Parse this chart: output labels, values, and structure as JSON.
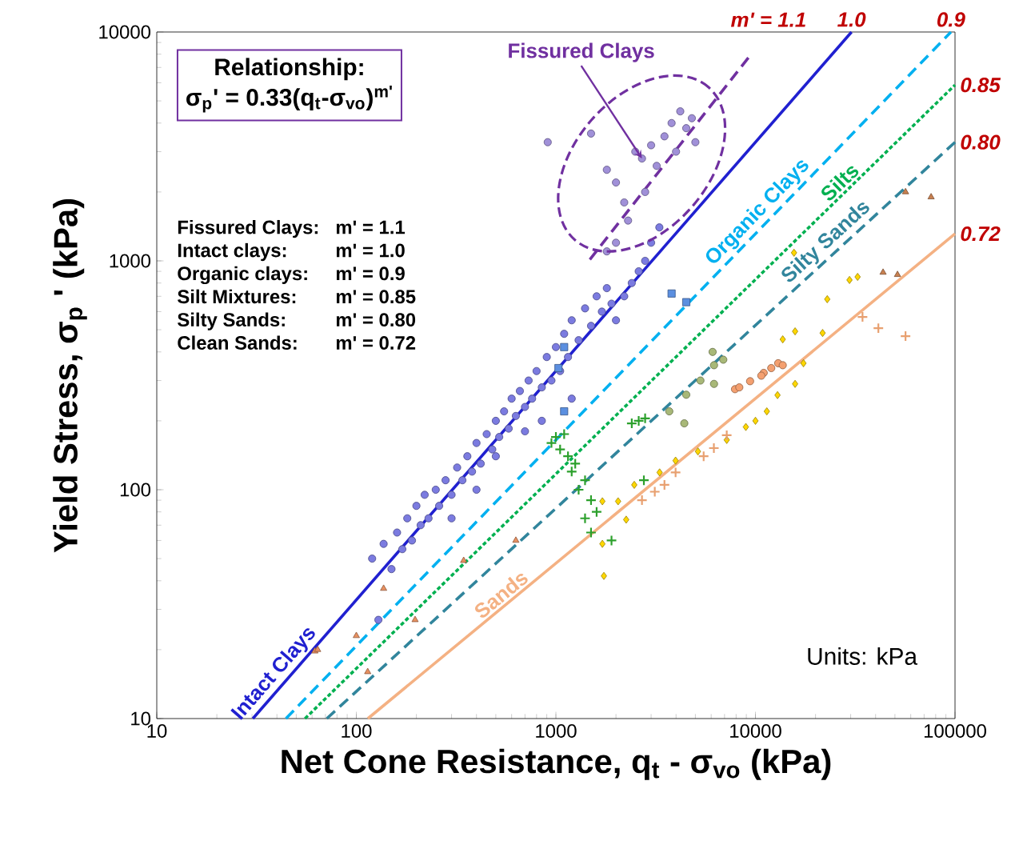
{
  "chart_data": {
    "type": "scatter",
    "xlabel": "Net Cone Resistance, q$_{t}$ - σ$_{vo}$   (kPa)",
    "ylabel": "Yield  Stress, σ$_{p}$ '  (kPa)",
    "log": "xy",
    "xlim": [
      10,
      100000
    ],
    "ylim": [
      10,
      10000
    ],
    "xticks": [
      10,
      100,
      1000,
      10000,
      100000
    ],
    "yticks": [
      10,
      100,
      1000,
      10000
    ],
    "annotations": [
      "Relationship:",
      "σ$_{p}$' = 0.33(q$_{t}$-σ$_{vo}$)$^{m'}$",
      "Fissured Clays:",
      "m' = 1.1",
      "Intact clays:",
      "m' =  1.0",
      "Organic clays:",
      "m' =  0.9",
      "Silt Mixtures:",
      "m' = 0.85",
      "Silty Sands:",
      "m' = 0.80",
      "Clean Sands:",
      "m' = 0.72",
      "Units:  kPa",
      {
        "text": "Fissured Clays",
        "x": 2700,
        "y": 2800
      },
      "Intact Clays",
      "Organic Clays",
      "Silts",
      "Silty Sands",
      "Sands",
      "m' = 1.1",
      "1.0",
      "0.9",
      "0.85",
      "0.80",
      "0.72"
    ],
    "series": [
      {
        "marker": "circle",
        "color": "#7b7be0",
        "x": [
          120,
          137,
          129,
          150,
          160,
          170,
          180,
          190,
          200,
          210,
          220,
          230,
          250,
          260,
          280,
          300,
          320,
          340,
          360,
          380,
          400,
          420,
          450,
          480,
          500,
          520,
          550,
          580,
          600,
          630,
          660,
          700,
          730,
          760,
          800,
          850,
          900,
          950,
          1000,
          1050,
          1100,
          1150,
          1200,
          1300,
          1400,
          1500,
          1600,
          1700,
          1800,
          1900,
          2000,
          2200,
          2400,
          2600,
          2800,
          3000,
          3300,
          700,
          500,
          1200,
          850,
          400,
          300
        ],
        "values": [
          50,
          58,
          27,
          45,
          65,
          55,
          75,
          60,
          85,
          70,
          95,
          75,
          100,
          85,
          110,
          95,
          125,
          110,
          140,
          120,
          160,
          130,
          175,
          150,
          200,
          170,
          220,
          185,
          250,
          210,
          270,
          230,
          300,
          250,
          330,
          280,
          380,
          300,
          420,
          330,
          480,
          380,
          550,
          450,
          620,
          520,
          700,
          600,
          760,
          650,
          550,
          700,
          800,
          900,
          1000,
          1200,
          1400,
          180,
          140,
          250,
          200,
          100,
          75
        ]
      },
      {
        "marker": "circle",
        "color": "#a090d8",
        "x": [
          910,
          1500,
          1800,
          2000,
          2200,
          2500,
          2700,
          3000,
          3200,
          3500,
          3800,
          4000,
          4200,
          4500,
          4800,
          5000,
          2800,
          2300,
          2000,
          1800
        ],
        "values": [
          3300,
          3600,
          2500,
          2200,
          1800,
          3000,
          2800,
          3200,
          2600,
          3500,
          4000,
          3000,
          4500,
          3800,
          4200,
          3300,
          2000,
          1500,
          1200,
          1100
        ]
      },
      {
        "marker": "square",
        "color": "#5b8fe0",
        "x": [
          1100,
          1030,
          1100,
          3800,
          4500
        ],
        "values": [
          420,
          340,
          220,
          720,
          660
        ]
      },
      {
        "marker": "cross",
        "color": "#2ca02c",
        "x": [
          950,
          1000,
          1050,
          1100,
          1150,
          1200,
          1250,
          1300,
          1400,
          1500,
          1400,
          1600,
          1500,
          2400,
          2600,
          2800,
          2760,
          1900
        ],
        "values": [
          160,
          170,
          150,
          175,
          140,
          120,
          130,
          100,
          110,
          90,
          75,
          80,
          65,
          195,
          200,
          205,
          110,
          60
        ]
      },
      {
        "marker": "circle",
        "color": "#a8b878",
        "x": [
          6100,
          6200,
          6900,
          5300,
          4500,
          3700,
          4400,
          6200
        ],
        "values": [
          400,
          350,
          370,
          300,
          260,
          220,
          195,
          290
        ]
      },
      {
        "marker": "circle",
        "color": "#f4a070",
        "x": [
          7900,
          9400,
          11000,
          13000,
          13700,
          10700,
          12000,
          8300
        ],
        "values": [
          275,
          298,
          324,
          357,
          350,
          315,
          340,
          280
        ]
      },
      {
        "marker": "diamond",
        "color": "#ffd700",
        "x": [
          1710,
          1710,
          1740,
          2050,
          2250,
          2470,
          3310,
          3980,
          5150,
          7180,
          8950,
          10000,
          11400,
          12900,
          15800,
          17400,
          13700,
          15800,
          21700,
          22900,
          29600,
          32500,
          15600
        ],
        "values": [
          89,
          58,
          42,
          89,
          74,
          105,
          119,
          134,
          147,
          165,
          188,
          200,
          220,
          259,
          290,
          357,
          454,
          492,
          484,
          680,
          825,
          851,
          1085
        ]
      },
      {
        "marker": "cross",
        "color": "#e8a070",
        "x": [
          3130,
          3980,
          6190,
          7180,
          34400,
          41300,
          56500,
          2700,
          3500,
          5500
        ],
        "values": [
          98,
          119,
          152,
          173,
          569,
          508,
          469,
          90,
          105,
          140
        ]
      },
      {
        "marker": "triangle",
        "color": "#c88050",
        "x": [
          56500,
          75900,
          43600,
          51500
        ],
        "values": [
          2000,
          1900,
          890,
          870
        ]
      },
      {
        "marker": "triangle",
        "color": "#e89060",
        "x": [
          62,
          64,
          100,
          114,
          137,
          197,
          345,
          630
        ],
        "values": [
          19.7,
          20,
          23,
          16,
          37,
          27,
          49,
          60
        ]
      },
      {
        "type": "line",
        "line_style": "dashed",
        "color": "#7030a0",
        "x": [
          1480,
          9300
        ],
        "values": [
          1013,
          7800
        ]
      },
      {
        "type": "line",
        "line_style": "solid",
        "color": "#2020d0",
        "x": [
          30.3,
          30300
        ],
        "values": [
          10,
          10000
        ]
      },
      {
        "type": "line",
        "line_style": "dashed",
        "color": "#00b0f0",
        "x": [
          44.4,
          95400
        ],
        "values": [
          10,
          10000
        ]
      },
      {
        "type": "line",
        "line_style": "dotted",
        "color": "#00b050",
        "x": [
          55.3,
          100000
        ],
        "values": [
          10,
          5870
        ]
      },
      {
        "type": "line",
        "line_style": "dashed",
        "color": "#31859c",
        "x": [
          71.1,
          100000
        ],
        "values": [
          10,
          3300
        ]
      },
      {
        "type": "line",
        "line_style": "solid",
        "color": "#f4b183",
        "x": [
          114.2,
          100000
        ],
        "values": [
          10,
          1314
        ]
      }
    ]
  }
}
